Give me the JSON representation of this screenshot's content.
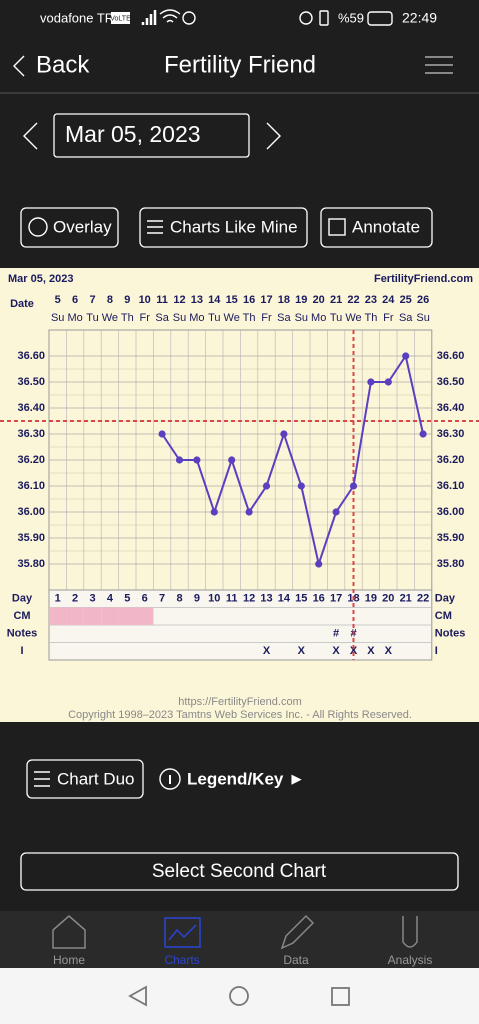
{
  "status_bar": {
    "carrier": "vodafone TR",
    "volte": "VoLTE",
    "battery": "%59",
    "time": "22:49"
  },
  "header": {
    "back": "Back",
    "title": "Fertility Friend"
  },
  "date_nav": {
    "date": "Mar 05, 2023"
  },
  "buttons": [
    "Overlay",
    "Charts Like Mine",
    "Annotate"
  ],
  "chart_data": {
    "type": "line",
    "title": "Mar 05, 2023",
    "site": "FertilityFriend.com",
    "date_label": "Date",
    "categories": [
      "5",
      "6",
      "7",
      "8",
      "9",
      "10",
      "11",
      "12",
      "13",
      "14",
      "15",
      "16",
      "17",
      "18",
      "19",
      "20",
      "21",
      "22",
      "23",
      "24",
      "25",
      "26"
    ],
    "weekdays": [
      "Su",
      "Mo",
      "Tu",
      "We",
      "Th",
      "Fr",
      "Sa",
      "Su",
      "Mo",
      "Tu",
      "We",
      "Th",
      "Fr",
      "Sa",
      "Su",
      "Mo",
      "Tu",
      "We",
      "Th",
      "Fr",
      "Sa",
      "Su"
    ],
    "cycle_days": [
      1,
      2,
      3,
      4,
      5,
      6,
      7,
      8,
      9,
      10,
      11,
      12,
      13,
      14,
      15,
      16,
      17,
      18,
      19,
      20,
      21,
      22
    ],
    "values": [
      null,
      null,
      null,
      null,
      null,
      null,
      36.3,
      36.2,
      36.2,
      36.0,
      36.2,
      36.0,
      36.1,
      36.3,
      36.1,
      35.8,
      36.0,
      36.1,
      36.5,
      36.5,
      36.6,
      36.3
    ],
    "color": "#5a3fc0",
    "ylim": [
      35.7,
      36.7
    ],
    "yticks": [
      {
        "value": 35.8,
        "label": "35.80"
      },
      {
        "value": 35.9,
        "label": "35.90"
      },
      {
        "value": 36.0,
        "label": "36.00"
      },
      {
        "value": 36.1,
        "label": "36.10"
      },
      {
        "value": 36.2,
        "label": "36.20"
      },
      {
        "value": 36.3,
        "label": "36.30"
      },
      {
        "value": 36.4,
        "label": "36.40"
      },
      {
        "value": 36.5,
        "label": "36.50"
      },
      {
        "value": 36.6,
        "label": "36.60"
      }
    ],
    "grid": true,
    "coverline": 36.35,
    "ovulation_day": 18,
    "marker_color": "#d94848",
    "row_labels": [
      "Day",
      "CM",
      "Notes",
      "I"
    ],
    "period": [
      true,
      true,
      true,
      true,
      true,
      true,
      false,
      false,
      false,
      false,
      false,
      false,
      false,
      false,
      false,
      false,
      false,
      false,
      false,
      false,
      false,
      false
    ],
    "period_color": "#f2b6c9",
    "notes": [
      null,
      null,
      null,
      null,
      null,
      null,
      null,
      null,
      null,
      null,
      null,
      null,
      null,
      null,
      null,
      null,
      "#",
      "#",
      null,
      null,
      null,
      null
    ],
    "intercourse": [
      null,
      null,
      null,
      null,
      null,
      null,
      null,
      null,
      null,
      null,
      null,
      null,
      "X",
      null,
      "X",
      null,
      "X",
      "X",
      "X",
      "X",
      null,
      null
    ],
    "footer_url": "https://FertilityFriend.com",
    "copyright": "Copyright 1998–2023 Tamtns Web Services Inc. - All Rights Reserved."
  },
  "chart_duo": "Chart Duo",
  "legend_key": "Legend/Key ►",
  "select_second": "Select Second Chart",
  "tabs": [
    "Home",
    "Charts",
    "Data",
    "Analysis"
  ]
}
